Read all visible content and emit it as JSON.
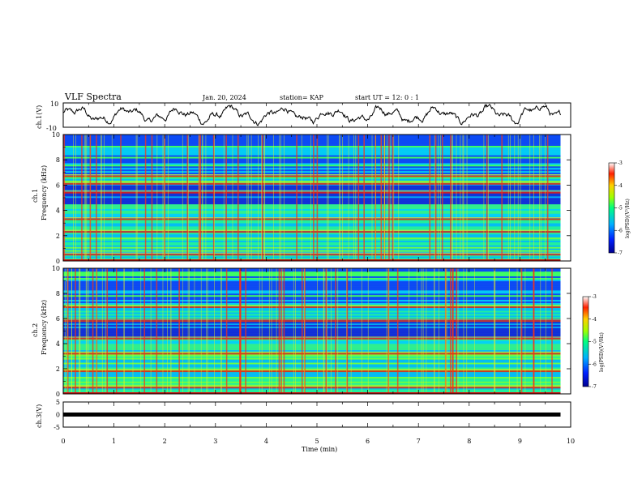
{
  "header": {
    "title": "VLF Spectra",
    "date": "Jan. 20, 2024",
    "station": "station= KAP",
    "start": "start  UT =   12: 0   : 1"
  },
  "colors": {
    "spec_low": "#0000c8",
    "spec_mid": "#00e0a0",
    "spec_high": "#d01010"
  },
  "chart_data": [
    {
      "type": "line",
      "id": "ch1",
      "ylabel": "ch.1(V)",
      "ylim": [
        -10,
        10
      ],
      "yticks": [
        "10",
        "-10"
      ],
      "xlim": [
        0,
        10
      ],
      "note": "waveform trace"
    },
    {
      "type": "heatmap",
      "id": "ch1-spectrum",
      "ylabel": "ch.1\nFrequency  (kHz)",
      "ylabel_lines": [
        "ch.1",
        "Frequency  (kHz)"
      ],
      "ylim": [
        0,
        10
      ],
      "yticks": [
        "0",
        "2",
        "4",
        "6",
        "8",
        "10"
      ],
      "xlim": [
        0,
        10
      ],
      "strong_lines_khz": [
        0.5,
        2.3,
        3.3,
        5.4,
        6.1,
        6.7
      ],
      "colorbar": {
        "ticks": [
          "-3",
          "-4",
          "-5",
          "-6",
          "-7"
        ],
        "label": "log(PSD)(V²/Hz)",
        "range": [
          -7,
          -3
        ]
      }
    },
    {
      "type": "heatmap",
      "id": "ch2-spectrum",
      "ylabel_lines": [
        "ch.2",
        "Frequency  (kHz)"
      ],
      "ylim": [
        0,
        10
      ],
      "yticks": [
        "0",
        "2",
        "4",
        "6",
        "8",
        "10"
      ],
      "xlim": [
        0,
        10
      ],
      "strong_lines_khz": [
        0.5,
        1.8,
        3.2,
        4.4,
        5.8,
        6.9
      ],
      "colorbar": {
        "ticks": [
          "-3",
          "-4",
          "-5",
          "-6",
          "-7"
        ],
        "label": "log(PSD)(V²/Hz)",
        "range": [
          -7,
          -3
        ]
      }
    },
    {
      "type": "line",
      "id": "ch3",
      "ylabel": "ch.3(V)",
      "ylim": [
        -5,
        5
      ],
      "yticks": [
        "5",
        "0",
        "-5"
      ],
      "xlim": [
        0,
        10
      ],
      "xticks": [
        "0",
        "1",
        "2",
        "3",
        "4",
        "5",
        "6",
        "7",
        "8",
        "9",
        "10"
      ],
      "xlabel": "Time  (min)",
      "level_v": 0
    }
  ]
}
